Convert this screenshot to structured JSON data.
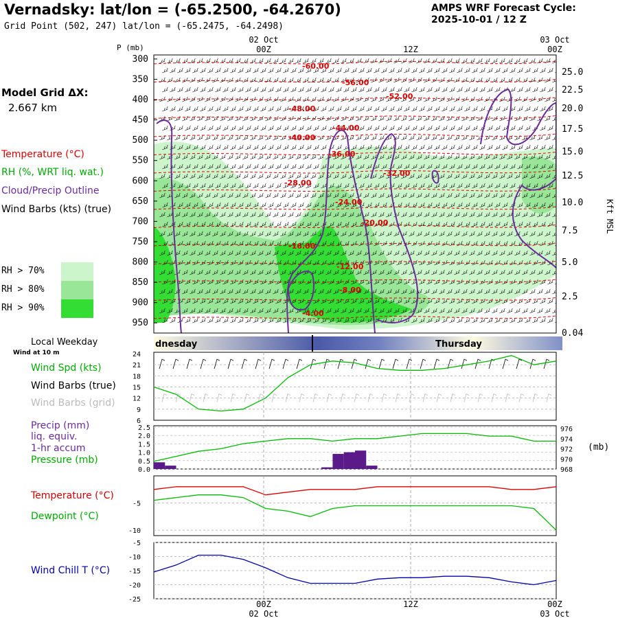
{
  "header": {
    "title": "Vernadsky:  lat/lon = (-65.2500, -64.2670)",
    "cycle_line1": "AMPS WRF Forecast Cycle:",
    "cycle_line2": "2025-10-01 / 12  Z",
    "grid_point": "Grid Point (502, 247) lat/lon = (-65.2475, -64.2498)"
  },
  "side": {
    "model_grid_label": "Model Grid ΔX:",
    "model_grid_value": "2.667 km",
    "legend_temperature": "Temperature (°C)",
    "legend_rh": "RH (%, WRT liq. wat.)",
    "legend_cloud": "Cloud/Precip Outline",
    "legend_wind": "Wind Barbs (kts) (true)",
    "rh70": "RH > 70%",
    "rh80": "RH > 80%",
    "rh90": "RH > 90%",
    "local_weekday": "Local Weekday",
    "wind_at_10m": "Wind at 10 m",
    "wind_spd": "Wind Spd (kts)",
    "wind_barbs_true": "Wind Barbs (true)",
    "wind_barbs_grid": "Wind Barbs (grid)",
    "precip_l1": "Precip (mm)",
    "precip_l2": "liq. equiv.",
    "precip_l3": "1-hr accum",
    "pressure": "Pressure (mb)",
    "temperature": "Temperature (°C)",
    "dewpoint": "Dewpoint (°C)",
    "wind_chill": "Wind Chill T (°C)"
  },
  "colors": {
    "temperature": "#dd0000",
    "dewpoint": "#00bb00",
    "rh70": "#ccf5cc",
    "rh80": "#99e699",
    "rh90": "#33dd33",
    "cloud": "#6a2a9a",
    "wind_chill": "#0000aa",
    "precip": "#5a1a8a",
    "barb_grid": "#bbbbbb"
  },
  "chart_data": [
    {
      "type": "heatmap",
      "name": "Vertical cross-section",
      "yaxis_title": "P (mb)",
      "yaxis_right_title": "Kft MSL",
      "y_ticks": [
        "300",
        "350",
        "400",
        "450",
        "500",
        "550",
        "600",
        "650",
        "700",
        "750",
        "800",
        "850",
        "900",
        "950"
      ],
      "y_right_ticks": [
        "25.0",
        "22.5",
        "20.0",
        "17.5",
        "15.0",
        "12.5",
        "10.0",
        "7.5",
        "5.0",
        "2.5",
        "0.04"
      ],
      "x_top_date": "02 Oct",
      "x_top_date_right": "03 Oct",
      "x_ticks": [
        "00Z",
        "12Z",
        "00Z"
      ],
      "temperature_contours": [
        "-60.00",
        "-56.00",
        "-52.00",
        "-48.00",
        "-44.00",
        "-40.00",
        "-36.00",
        "-32.00",
        "-28.00",
        "-24.00",
        "-20.00",
        "-16.00",
        "-12.00",
        "-8.00",
        "-4.00"
      ],
      "legend": [
        "RH > 70%",
        "RH > 80%",
        "RH > 90%"
      ]
    },
    {
      "type": "line",
      "name": "Local weekday",
      "labels": [
        "dnesday",
        "Thursday"
      ]
    },
    {
      "type": "line",
      "name": "Wind speed",
      "y_ticks": [
        "24",
        "21",
        "18",
        "15",
        "12",
        "9",
        "6"
      ],
      "ylim": [
        6,
        24
      ],
      "hours": [
        0,
        2,
        4,
        6,
        8,
        10,
        12,
        14,
        16,
        18,
        20,
        22,
        24,
        26,
        28,
        30,
        32,
        34,
        36
      ],
      "values": [
        15,
        13,
        9,
        8.5,
        9,
        12,
        17.5,
        21,
        22,
        21.5,
        20,
        19.5,
        19.5,
        20,
        21,
        22,
        23.5,
        21,
        22
      ]
    },
    {
      "type": "bar",
      "name": "Precip and pressure",
      "precip_ylim": [
        0,
        2.5
      ],
      "precip_ticks": [
        "2.5",
        "2.0",
        "1.5",
        "1.0",
        "0.5",
        "0.0"
      ],
      "precip_hours": [
        0,
        1,
        15,
        16,
        17,
        18,
        19
      ],
      "precip_values": [
        0.4,
        0.2,
        0.1,
        0.9,
        1.0,
        1.1,
        0.2
      ],
      "pressure_ylim": [
        968,
        976
      ],
      "pressure_ticks": [
        "976",
        "974",
        "972",
        "970",
        "968"
      ],
      "pressure_unit": "(mb)",
      "hours": [
        0,
        2,
        4,
        6,
        8,
        10,
        12,
        14,
        16,
        18,
        20,
        22,
        24,
        26,
        28,
        30,
        32,
        34,
        36
      ],
      "values": [
        969.5,
        970.5,
        971.5,
        972,
        973,
        973.5,
        974,
        974,
        973.5,
        974,
        974,
        974.5,
        975,
        975,
        975,
        974.5,
        974.5,
        973.5,
        973.5
      ]
    },
    {
      "type": "line",
      "name": "Temperature and dewpoint",
      "y_ticks": [
        "-5",
        "-10"
      ],
      "ylim": [
        -11,
        0
      ],
      "hours": [
        0,
        2,
        4,
        6,
        8,
        10,
        12,
        14,
        16,
        18,
        20,
        22,
        24,
        26,
        28,
        30,
        32,
        34,
        36
      ],
      "temperature": [
        -2.5,
        -2,
        -2,
        -2,
        -2,
        -3.5,
        -3,
        -2.5,
        -2.5,
        -2.5,
        -2,
        -2,
        -2,
        -2,
        -2,
        -2,
        -2.5,
        -2.5,
        -2
      ],
      "dewpoint": [
        -4.5,
        -4,
        -3.5,
        -3.5,
        -4,
        -6,
        -6.5,
        -7.5,
        -6,
        -5.5,
        -5.5,
        -5.5,
        -5.5,
        -5.5,
        -5.5,
        -5.5,
        -5.5,
        -6,
        -10
      ]
    },
    {
      "type": "line",
      "name": "Wind chill",
      "y_ticks": [
        "-5",
        "-10",
        "-15",
        "-20",
        "-25"
      ],
      "ylim": [
        -25,
        -5
      ],
      "x_ticks": [
        "00Z",
        "12Z",
        "00Z"
      ],
      "x_dates": [
        "02 Oct",
        "03 Oct"
      ],
      "hours": [
        0,
        2,
        4,
        6,
        8,
        10,
        12,
        14,
        16,
        18,
        20,
        22,
        24,
        26,
        28,
        30,
        32,
        34,
        36
      ],
      "values": [
        -15.5,
        -13,
        -9.5,
        -9.5,
        -11,
        -14,
        -17.5,
        -19.5,
        -19.5,
        -19.5,
        -18,
        -17.5,
        -17.5,
        -17,
        -17,
        -17.5,
        -19,
        -20,
        -18.5
      ]
    }
  ]
}
